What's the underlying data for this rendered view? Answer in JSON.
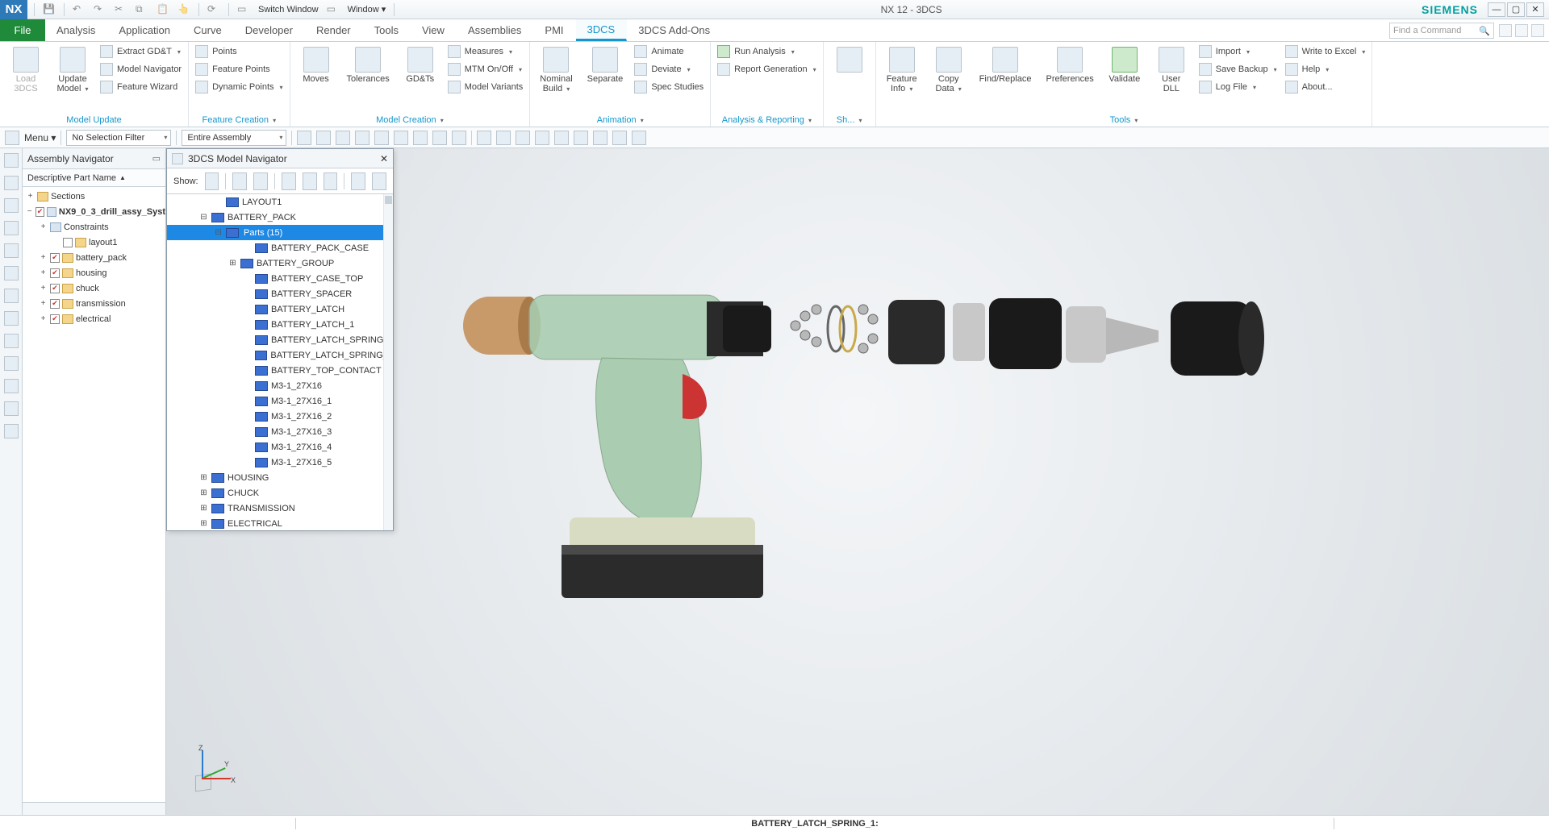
{
  "titlebar": {
    "logo": "NX",
    "qat_items": [
      "Switch Window",
      "Window"
    ],
    "title": "NX 12 - 3DCS",
    "brand": "SIEMENS"
  },
  "menubar": {
    "file": "File",
    "tabs": [
      "Analysis",
      "Application",
      "Curve",
      "Developer",
      "Render",
      "Tools",
      "View",
      "Assemblies",
      "PMI",
      "3DCS",
      "3DCS Add-Ons"
    ],
    "active_index": 9,
    "find_placeholder": "Find a Command"
  },
  "ribbon": {
    "groups": [
      {
        "label": "Model Update",
        "big": [
          {
            "t": "Load 3DCS",
            "dis": true
          },
          {
            "t": "Update Model",
            "caret": true
          }
        ],
        "small": [
          {
            "t": "Extract GD&T",
            "caret": true
          },
          {
            "t": "Model Navigator"
          },
          {
            "t": "Feature Wizard"
          }
        ]
      },
      {
        "label": "Feature Creation",
        "small": [
          {
            "t": "Points"
          },
          {
            "t": "Feature Points"
          },
          {
            "t": "Dynamic Points",
            "caret": true
          }
        ],
        "label_caret": true
      },
      {
        "label": "Model Creation",
        "big": [
          {
            "t": "Moves"
          },
          {
            "t": "Tolerances"
          },
          {
            "t": "GD&Ts"
          }
        ],
        "small": [
          {
            "t": "Measures",
            "caret": true
          },
          {
            "t": "MTM On/Off",
            "caret": true
          },
          {
            "t": "Model Variants"
          }
        ],
        "label_caret": true
      },
      {
        "label": "Animation",
        "big": [
          {
            "t": "Nominal Build",
            "caret": true
          },
          {
            "t": "Separate"
          }
        ],
        "small": [
          {
            "t": "Animate"
          },
          {
            "t": "Deviate",
            "caret": true
          },
          {
            "t": "Spec Studies"
          }
        ],
        "label_caret": true
      },
      {
        "label": "Analysis & Reporting",
        "small": [
          {
            "t": "Run Analysis",
            "caret": true,
            "g": true
          },
          {
            "t": "Report Generation",
            "caret": true
          }
        ],
        "label_caret": true
      },
      {
        "label": "Sh...",
        "big": [
          {
            "t": "",
            "iconly": true
          }
        ],
        "label_caret": true
      },
      {
        "label": "Tools",
        "big": [
          {
            "t": "Feature Info",
            "caret": true
          },
          {
            "t": "Copy Data",
            "caret": true
          },
          {
            "t": "Find/Replace"
          },
          {
            "t": "Preferences"
          },
          {
            "t": "Validate",
            "g": true
          },
          {
            "t": "User DLL"
          }
        ],
        "small_groups": [
          [
            {
              "t": "Import",
              "caret": true
            },
            {
              "t": "Save Backup",
              "caret": true
            },
            {
              "t": "Log File",
              "caret": true
            }
          ],
          [
            {
              "t": "Write to Excel",
              "caret": true
            },
            {
              "t": "Help",
              "caret": true
            },
            {
              "t": "About..."
            }
          ]
        ],
        "label_caret": true
      }
    ]
  },
  "toolrow": {
    "menu_label": "Menu",
    "filter": "No Selection Filter",
    "scope": "Entire Assembly"
  },
  "assembly_nav": {
    "title": "Assembly Navigator",
    "column": "Descriptive Part Name",
    "rows": [
      {
        "ind": 0,
        "tw": "+",
        "cb": "",
        "icon": "f",
        "txt": "Sections"
      },
      {
        "ind": 0,
        "tw": "−",
        "cb": "✔",
        "icon": "c",
        "txt": "NX9_0_3_drill_assy_Syst",
        "bold": true
      },
      {
        "ind": 1,
        "tw": "+",
        "cb": "",
        "icon": "c",
        "txt": "Constraints"
      },
      {
        "ind": 2,
        "tw": "",
        "cb": "☐",
        "icon": "f",
        "txt": "layout1"
      },
      {
        "ind": 1,
        "tw": "+",
        "cb": "✔",
        "icon": "f",
        "txt": "battery_pack"
      },
      {
        "ind": 1,
        "tw": "+",
        "cb": "✔",
        "icon": "f",
        "txt": "housing"
      },
      {
        "ind": 1,
        "tw": "+",
        "cb": "✔",
        "icon": "f",
        "txt": "chuck"
      },
      {
        "ind": 1,
        "tw": "+",
        "cb": "✔",
        "icon": "f",
        "txt": "transmission"
      },
      {
        "ind": 1,
        "tw": "+",
        "cb": "✔",
        "icon": "f",
        "txt": "electrical"
      }
    ]
  },
  "model_nav": {
    "title": "3DCS Model Navigator",
    "show": "Show:",
    "rows": [
      {
        "ind": 3,
        "tw": "",
        "txt": "LAYOUT1"
      },
      {
        "ind": 2,
        "tw": "−",
        "txt": "BATTERY_PACK"
      },
      {
        "ind": 3,
        "tw": "−",
        "txt": "Parts (15)",
        "sel": true
      },
      {
        "ind": 5,
        "tw": "",
        "txt": "BATTERY_PACK_CASE"
      },
      {
        "ind": 4,
        "tw": "+",
        "txt": "BATTERY_GROUP"
      },
      {
        "ind": 5,
        "tw": "",
        "txt": "BATTERY_CASE_TOP"
      },
      {
        "ind": 5,
        "tw": "",
        "txt": "BATTERY_SPACER"
      },
      {
        "ind": 5,
        "tw": "",
        "txt": "BATTERY_LATCH"
      },
      {
        "ind": 5,
        "tw": "",
        "txt": "BATTERY_LATCH_1"
      },
      {
        "ind": 5,
        "tw": "",
        "txt": "BATTERY_LATCH_SPRING"
      },
      {
        "ind": 5,
        "tw": "",
        "txt": "BATTERY_LATCH_SPRING_1"
      },
      {
        "ind": 5,
        "tw": "",
        "txt": "BATTERY_TOP_CONTACT"
      },
      {
        "ind": 5,
        "tw": "",
        "txt": "M3-1_27X16"
      },
      {
        "ind": 5,
        "tw": "",
        "txt": "M3-1_27X16_1"
      },
      {
        "ind": 5,
        "tw": "",
        "txt": "M3-1_27X16_2"
      },
      {
        "ind": 5,
        "tw": "",
        "txt": "M3-1_27X16_3"
      },
      {
        "ind": 5,
        "tw": "",
        "txt": "M3-1_27X16_4"
      },
      {
        "ind": 5,
        "tw": "",
        "txt": "M3-1_27X16_5"
      },
      {
        "ind": 2,
        "tw": "+",
        "txt": "HOUSING"
      },
      {
        "ind": 2,
        "tw": "+",
        "txt": "CHUCK"
      },
      {
        "ind": 2,
        "tw": "+",
        "txt": "TRANSMISSION"
      },
      {
        "ind": 2,
        "tw": "+",
        "txt": "ELECTRICAL"
      }
    ]
  },
  "status": {
    "center": "BATTERY_LATCH_SPRING_1:"
  },
  "drill_colors": {
    "body": "#1f8a3a",
    "body_light": "#dfe8df",
    "chuck": "#2a2a2a",
    "motor": "#c89a6a",
    "battery": "#2b2b2b",
    "battery_top": "#d8dcc2"
  }
}
